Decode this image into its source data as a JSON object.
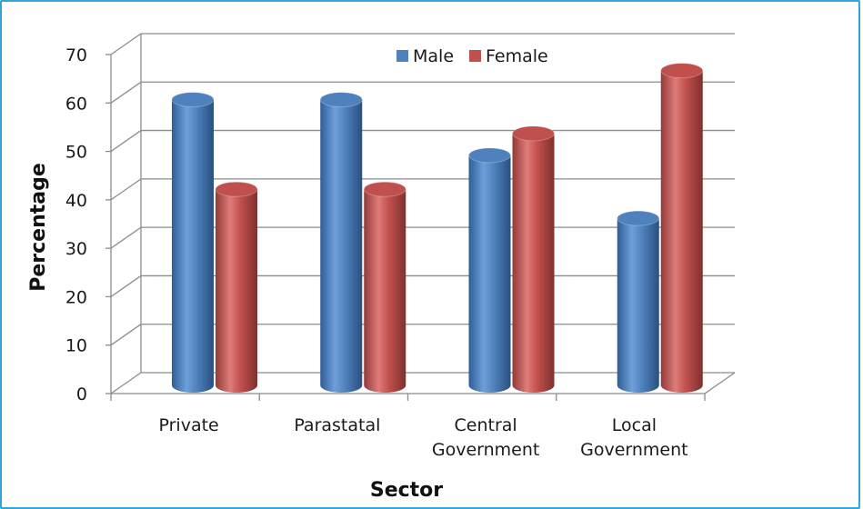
{
  "chart_data": {
    "type": "bar",
    "title": "",
    "xlabel": "Sector",
    "ylabel": "Percentage",
    "ylim": [
      0,
      70
    ],
    "yticks": [
      0,
      10,
      20,
      30,
      40,
      50,
      60,
      70
    ],
    "grid": true,
    "legend_position": "top-right",
    "categories": [
      [
        "Private"
      ],
      [
        "Parastatal"
      ],
      [
        "Central",
        "Government"
      ],
      [
        "Local",
        "Government"
      ]
    ],
    "series": [
      {
        "name": "Male",
        "values": [
          59,
          59,
          47.5,
          34.5
        ],
        "color": "#4f81bd"
      },
      {
        "name": "Female",
        "values": [
          40.5,
          40.5,
          52,
          65
        ],
        "color": "#c0504d"
      }
    ]
  }
}
